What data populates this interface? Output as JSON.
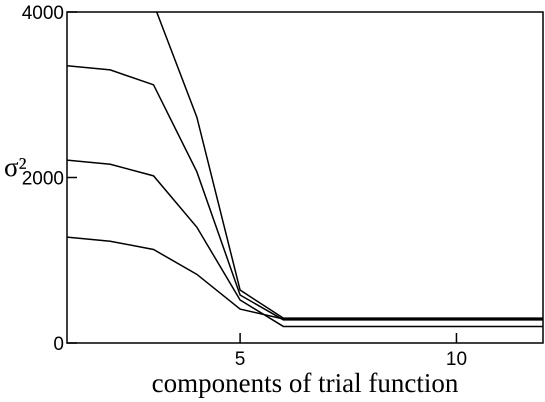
{
  "chart_data": {
    "type": "line",
    "x_label": "components of trial function",
    "y_label": "σ²",
    "x": [
      1,
      2,
      3,
      4,
      5,
      6,
      7,
      8,
      9,
      10,
      11,
      12
    ],
    "series": [
      {
        "color": "#000000",
        "values": [
          null,
          null,
          4100,
          2730,
          640,
          300,
          300,
          300,
          300,
          300,
          300,
          300
        ]
      },
      {
        "color": "#000000",
        "values": [
          3350,
          3300,
          3120,
          2070,
          580,
          280,
          280,
          280,
          280,
          280,
          280,
          280
        ]
      },
      {
        "color": "#000000",
        "values": [
          2210,
          2160,
          2020,
          1400,
          520,
          200,
          200,
          200,
          200,
          200,
          200,
          200
        ]
      },
      {
        "color": "#000000",
        "values": [
          1280,
          1230,
          1130,
          830,
          410,
          290,
          290,
          290,
          290,
          290,
          290,
          290
        ]
      }
    ],
    "xlim": [
      1,
      12
    ],
    "xticks": [
      5,
      10
    ],
    "ylim": [
      0,
      4000
    ],
    "yticks": [
      0,
      2000,
      4000
    ]
  }
}
